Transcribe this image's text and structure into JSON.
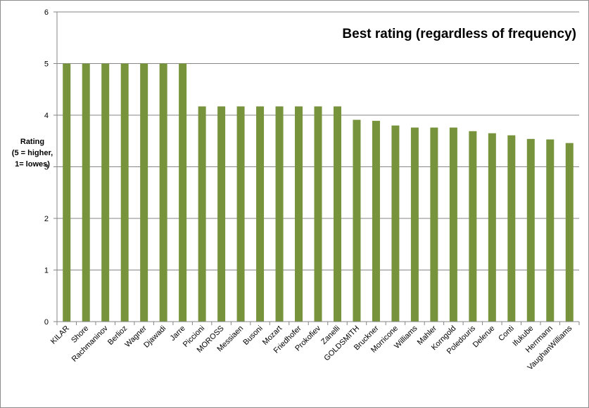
{
  "chart_data": {
    "type": "bar",
    "title": "Best rating (regardless of frequency)",
    "ylabel_lines": [
      "Rating",
      "(5 = higher,",
      "1= lowes)"
    ],
    "xlabel": "",
    "ylim": [
      0,
      6
    ],
    "yticks": [
      0,
      1,
      2,
      3,
      4,
      5,
      6
    ],
    "grid": true,
    "legend": "none",
    "bar_color": "#77933c",
    "categories": [
      "KILAR",
      "Shore",
      "Rachmaninov",
      "Berlioz",
      "Wagner",
      "Djawadi",
      "Jarre",
      "Piccioni",
      "MOROSS",
      "Messiaen",
      "Busoni",
      "Mozart",
      "Friedhofer",
      "Prokofiev",
      "Zanelli",
      "GOLDSMITH",
      "Bruckner",
      "Morricone",
      "Williams",
      "Mahler",
      "Korngold",
      "Poledouris",
      "Delerue",
      "Conti",
      "Ifukube",
      "Herrmann",
      "VaughanWilliams"
    ],
    "values": [
      5.0,
      5.0,
      5.0,
      5.0,
      5.0,
      5.0,
      5.0,
      4.17,
      4.17,
      4.17,
      4.17,
      4.17,
      4.17,
      4.17,
      4.17,
      3.91,
      3.89,
      3.8,
      3.76,
      3.76,
      3.76,
      3.69,
      3.65,
      3.61,
      3.54,
      3.53,
      3.46
    ]
  }
}
